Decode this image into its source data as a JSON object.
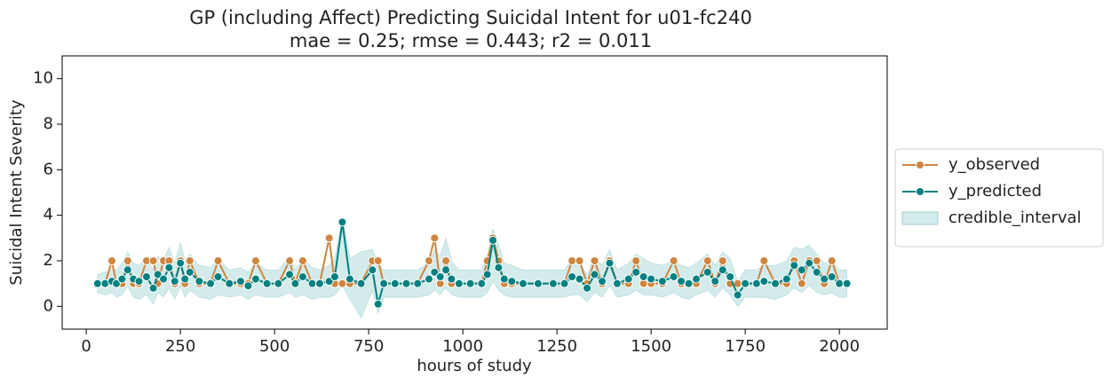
{
  "chart_data": {
    "type": "line",
    "title": "GP (including Affect) Predicting Suicidal Intent for u01-fc240",
    "subtitle": "mae = 0.25; rmse = 0.443; r2 = 0.011",
    "xlabel": "hours of study",
    "ylabel": "Suicidal Intent Severity",
    "xlim": [
      -64,
      2127
    ],
    "ylim": [
      -1,
      11
    ],
    "xticks": [
      0,
      250,
      500,
      750,
      1000,
      1250,
      1500,
      1750,
      2000
    ],
    "yticks": [
      0,
      2,
      4,
      6,
      8,
      10
    ],
    "grid": false,
    "legend": "right",
    "x": [
      30,
      50,
      68,
      80,
      95,
      110,
      125,
      140,
      160,
      178,
      190,
      205,
      220,
      235,
      250,
      262,
      275,
      300,
      330,
      350,
      380,
      410,
      430,
      450,
      480,
      510,
      540,
      555,
      575,
      600,
      620,
      645,
      660,
      680,
      700,
      730,
      760,
      775,
      790,
      820,
      850,
      880,
      910,
      925,
      940,
      955,
      970,
      990,
      1020,
      1050,
      1065,
      1080,
      1095,
      1110,
      1130,
      1160,
      1200,
      1240,
      1270,
      1290,
      1310,
      1330,
      1350,
      1370,
      1390,
      1410,
      1440,
      1460,
      1480,
      1500,
      1530,
      1560,
      1580,
      1600,
      1620,
      1650,
      1670,
      1690,
      1710,
      1730,
      1750,
      1780,
      1800,
      1830,
      1860,
      1880,
      1900,
      1920,
      1940,
      1960,
      1980,
      2000,
      2020
    ],
    "series": [
      {
        "name": "y_observed",
        "color": "#cd853f",
        "values": [
          1,
          1,
          2,
          1,
          1,
          2,
          1,
          1,
          2,
          2,
          1,
          2,
          2,
          1,
          2,
          1,
          2,
          1,
          1,
          2,
          1,
          1,
          1,
          2,
          1,
          1,
          2,
          1,
          2,
          1,
          1,
          3,
          1,
          1,
          1,
          1,
          2,
          2,
          1,
          1,
          1,
          1,
          2,
          3,
          1,
          2,
          1,
          1,
          1,
          1,
          2,
          3,
          2,
          1,
          1,
          1,
          1,
          1,
          1,
          2,
          2,
          1,
          2,
          1,
          2,
          1,
          1,
          2,
          1,
          1,
          1,
          2,
          1,
          1,
          1,
          2,
          1,
          2,
          1,
          1,
          1,
          1,
          2,
          1,
          1,
          2,
          1,
          2,
          2,
          1,
          2,
          1,
          1
        ]
      },
      {
        "name": "y_predicted",
        "color": "#008080",
        "values": [
          1.0,
          1.0,
          1.1,
          1.0,
          1.2,
          1.6,
          1.2,
          1.1,
          1.3,
          0.8,
          1.4,
          1.2,
          1.7,
          1.1,
          1.9,
          1.2,
          1.5,
          1.1,
          1.0,
          1.3,
          1.0,
          1.1,
          0.9,
          1.2,
          1.0,
          1.0,
          1.4,
          1.0,
          1.3,
          1.0,
          1.0,
          1.1,
          1.3,
          3.7,
          1.2,
          1.0,
          1.6,
          0.1,
          1.0,
          1.0,
          1.0,
          1.0,
          1.2,
          1.5,
          1.3,
          1.6,
          1.2,
          1.0,
          1.0,
          1.0,
          1.4,
          2.9,
          1.7,
          1.2,
          1.1,
          1.0,
          1.0,
          1.0,
          1.0,
          1.3,
          1.2,
          0.8,
          1.4,
          1.1,
          1.9,
          1.0,
          1.2,
          1.5,
          1.3,
          1.2,
          1.1,
          1.3,
          1.1,
          1.0,
          1.2,
          1.5,
          1.1,
          1.6,
          1.3,
          0.5,
          1.0,
          1.0,
          1.1,
          1.0,
          1.2,
          1.8,
          1.6,
          1.9,
          1.5,
          1.2,
          1.3,
          1.0,
          1.0
        ]
      },
      {
        "name": "credible_interval",
        "color": "#9fd3d3",
        "lower": [
          0.6,
          0.5,
          0.6,
          0.4,
          0.5,
          0.9,
          0.4,
          0.3,
          0.5,
          0.1,
          0.6,
          0.4,
          0.8,
          0.3,
          0.9,
          0.4,
          0.7,
          0.4,
          0.3,
          0.5,
          0.4,
          0.5,
          0.3,
          0.5,
          0.4,
          0.4,
          0.6,
          0.4,
          0.5,
          0.3,
          0.4,
          0.4,
          0.5,
          0.9,
          0.3,
          -0.5,
          0.7,
          -0.3,
          0.4,
          0.4,
          0.4,
          0.4,
          0.5,
          0.7,
          0.5,
          0.8,
          0.5,
          0.4,
          0.4,
          0.4,
          0.6,
          1.1,
          0.7,
          0.5,
          0.4,
          0.4,
          0.4,
          0.4,
          0.4,
          0.5,
          0.5,
          0.2,
          0.6,
          0.4,
          0.9,
          0.4,
          0.5,
          0.7,
          0.5,
          0.5,
          0.4,
          0.6,
          0.4,
          0.3,
          0.5,
          0.7,
          0.4,
          0.8,
          0.5,
          0.0,
          0.4,
          0.4,
          0.4,
          0.3,
          0.5,
          0.8,
          0.6,
          0.9,
          0.6,
          0.5,
          0.6,
          0.4,
          0.4
        ],
        "upper": [
          1.4,
          1.5,
          1.6,
          1.6,
          1.9,
          2.4,
          1.9,
          1.8,
          2.1,
          1.6,
          2.2,
          2.0,
          2.6,
          1.9,
          2.8,
          2.0,
          2.3,
          1.8,
          1.7,
          2.1,
          1.6,
          1.7,
          1.5,
          1.9,
          1.6,
          1.6,
          2.2,
          1.6,
          2.1,
          1.7,
          1.6,
          1.8,
          2.1,
          3.9,
          2.1,
          2.4,
          2.5,
          1.9,
          1.6,
          1.6,
          1.6,
          1.6,
          1.9,
          2.5,
          2.2,
          3.0,
          2.0,
          1.6,
          1.6,
          1.6,
          2.2,
          3.4,
          2.7,
          1.9,
          1.8,
          1.6,
          1.6,
          1.6,
          1.6,
          2.1,
          1.9,
          1.4,
          2.2,
          1.8,
          2.5,
          1.6,
          1.9,
          2.3,
          2.1,
          1.9,
          1.8,
          2.0,
          1.8,
          1.7,
          1.9,
          2.3,
          1.8,
          2.4,
          2.1,
          1.1,
          1.6,
          1.6,
          1.8,
          1.8,
          2.0,
          2.6,
          2.5,
          2.7,
          2.3,
          1.9,
          2.0,
          1.6,
          1.6
        ]
      }
    ]
  }
}
